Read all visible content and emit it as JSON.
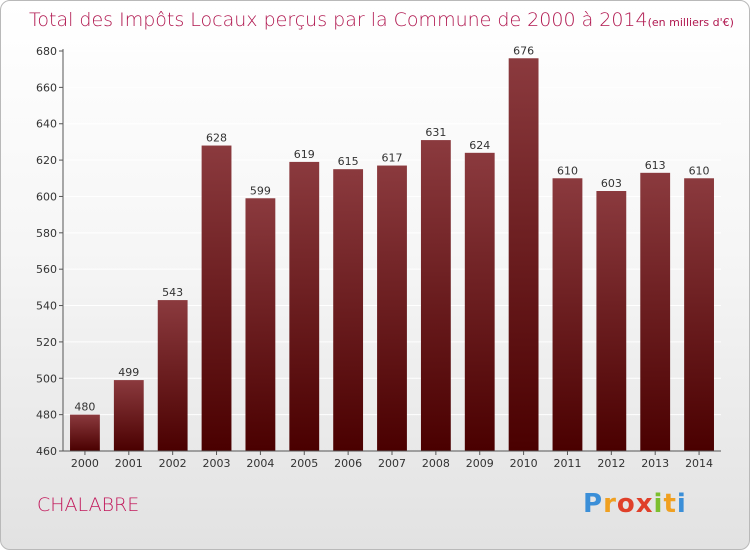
{
  "chart_data": {
    "type": "bar",
    "title": "Total des Impôts Locaux perçus par la Commune de 2000 à 2014",
    "unit_note": "(en milliers d'€)",
    "categories": [
      "2000",
      "2001",
      "2002",
      "2003",
      "2004",
      "2005",
      "2006",
      "2007",
      "2008",
      "2009",
      "2010",
      "2011",
      "2012",
      "2013",
      "2014"
    ],
    "values": [
      480,
      499,
      543,
      628,
      599,
      619,
      615,
      617,
      631,
      624,
      676,
      610,
      603,
      613,
      610
    ],
    "ylim": [
      460,
      680
    ],
    "yticks": [
      460,
      480,
      500,
      520,
      540,
      560,
      580,
      600,
      620,
      640,
      660,
      680
    ],
    "xlabel": "",
    "ylabel": "",
    "grid": true,
    "bar_color_top": "#8b3a3e",
    "bar_color_bottom": "#4a0000"
  },
  "commune": "CHALABRE",
  "logo": {
    "letters": [
      "P",
      "r",
      "o",
      "x",
      "i",
      "t",
      "i"
    ]
  }
}
